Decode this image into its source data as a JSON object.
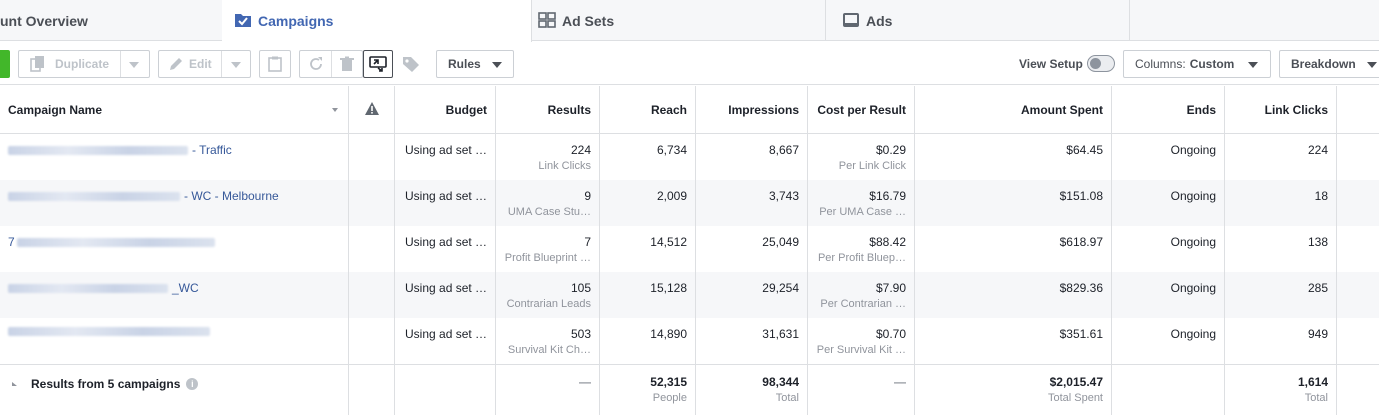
{
  "tabs": {
    "overview": "unt Overview",
    "campaigns": "Campaigns",
    "adsets": "Ad Sets",
    "ads": "Ads"
  },
  "toolbar": {
    "duplicate": "Duplicate",
    "edit": "Edit",
    "rules": "Rules",
    "view_setup": "View Setup",
    "columns_prefix": "Columns:",
    "columns_value": "Custom",
    "breakdown": "Breakdown"
  },
  "colors": {
    "accent": "#4267b2",
    "link": "#365899",
    "green": "#42b72a"
  },
  "columns": [
    "Campaign Name",
    "Budget",
    "Results",
    "Reach",
    "Impressions",
    "Cost per Result",
    "Amount Spent",
    "Ends",
    "Link Clicks"
  ],
  "rows": [
    {
      "name": "- Traffic",
      "budget": "Using ad set …",
      "results": "224",
      "results_sub": "Link Clicks",
      "reach": "6,734",
      "impressions": "8,667",
      "cpr": "$0.29",
      "cpr_sub": "Per Link Click",
      "spent": "$64.45",
      "ends": "Ongoing",
      "clicks": "224"
    },
    {
      "name": "- WC - Melbourne",
      "budget": "Using ad set …",
      "results": "9",
      "results_sub": "UMA Case Stu…",
      "reach": "2,009",
      "impressions": "3,743",
      "cpr": "$16.79",
      "cpr_sub": "Per UMA Case …",
      "spent": "$151.08",
      "ends": "Ongoing",
      "clicks": "18"
    },
    {
      "name": "7",
      "budget": "Using ad set …",
      "results": "7",
      "results_sub": "Profit Blueprint …",
      "reach": "14,512",
      "impressions": "25,049",
      "cpr": "$88.42",
      "cpr_sub": "Per Profit Bluep…",
      "spent": "$618.97",
      "ends": "Ongoing",
      "clicks": "138"
    },
    {
      "name": "_WC",
      "budget": "Using ad set …",
      "results": "105",
      "results_sub": "Contrarian Leads",
      "reach": "15,128",
      "impressions": "29,254",
      "cpr": "$7.90",
      "cpr_sub": "Per Contrarian …",
      "spent": "$829.36",
      "ends": "Ongoing",
      "clicks": "285"
    },
    {
      "name": "",
      "budget": "Using ad set …",
      "results": "503",
      "results_sub": "Survival Kit Ch…",
      "reach": "14,890",
      "impressions": "31,631",
      "cpr": "$0.70",
      "cpr_sub": "Per Survival Kit …",
      "spent": "$351.61",
      "ends": "Ongoing",
      "clicks": "949"
    }
  ],
  "totals": {
    "label": "Results from 5 campaigns",
    "results": "—",
    "reach": "52,315",
    "reach_sub": "People",
    "impressions": "98,344",
    "impressions_sub": "Total",
    "cpr": "—",
    "spent": "$2,015.47",
    "spent_sub": "Total Spent",
    "clicks": "1,614",
    "clicks_sub": "Total"
  }
}
